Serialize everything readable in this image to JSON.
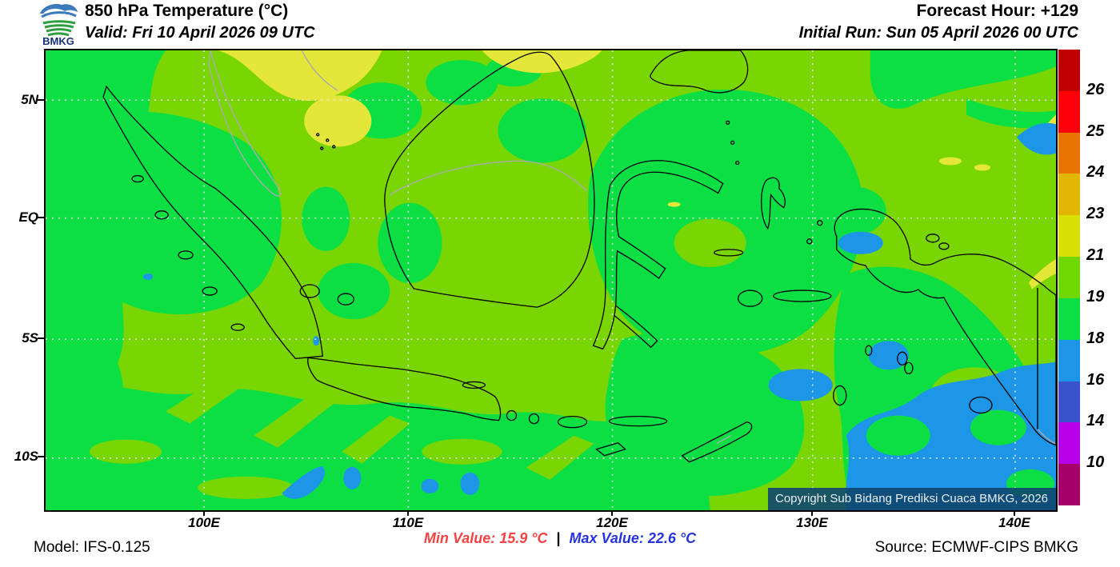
{
  "header": {
    "logo_text": "BMKG",
    "title": "850 hPa Temperature (°C)",
    "valid": "Valid: Fri 10 April 2026 09 UTC",
    "forecast_hour": "Forecast Hour: +129",
    "initial_run": "Initial Run: Sun 05 April 2026 00 UTC"
  },
  "map": {
    "lat_labels": [
      "5N",
      "EQ",
      "5S",
      "10S"
    ],
    "lon_labels": [
      "100E",
      "110E",
      "120E",
      "130E",
      "140E"
    ],
    "copyright": "Copyright Sub Bidang Prediksi Cuaca BMKG, 2026",
    "fill_legend": {
      "chartreuse_19_21": "#79d602",
      "green_18_19": "#0cdf44",
      "yellow_21_23": "#e4e73a",
      "blue_16_18": "#1e96e8"
    }
  },
  "colorbar": {
    "tick_labels": [
      "26",
      "25",
      "24",
      "23",
      "21",
      "19",
      "18",
      "16",
      "14",
      "10"
    ],
    "segment_colors_top_to_bottom": [
      "#c00000",
      "#fb0007",
      "#e97500",
      "#e2b604",
      "#d8e004",
      "#70d802",
      "#0cdf44",
      "#1e96e8",
      "#3a53cd",
      "#b500e8",
      "#a6006a"
    ]
  },
  "footer": {
    "model": "Model: IFS-0.125",
    "min_value": "Min Value: 15.9 °C",
    "separator": "|",
    "max_value": "Max Value: 22.6 °C",
    "source": "Source: ECMWF-CIPS BMKG",
    "min_color": "#f54242",
    "max_color": "#2733df"
  }
}
